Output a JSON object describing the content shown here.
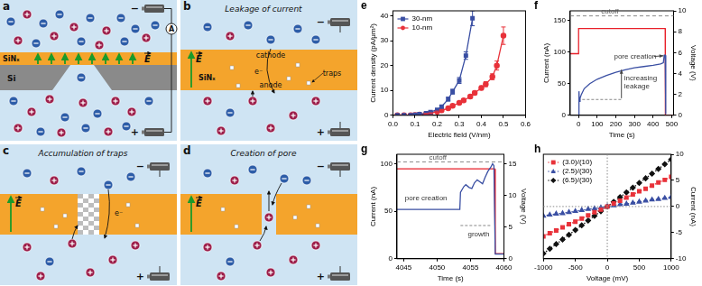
{
  "diagrams": [
    {
      "panel": "a",
      "electrodes": [
        "−",
        "+"
      ],
      "membrane": "SiNₓ",
      "substrate": "Si",
      "meter": "A",
      "field": "E"
    },
    {
      "panel": "b",
      "title": "Leakage of current",
      "electrodes": [
        "−",
        "+"
      ],
      "cathode": "cathode",
      "membrane": "SiNₓ",
      "anode": "anode",
      "traps": "traps",
      "electron": "e⁻",
      "field": "E"
    },
    {
      "panel": "c",
      "title": "Accumulation of traps",
      "electrodes": [
        "−",
        "+"
      ],
      "electron": "e⁻",
      "field": "E"
    },
    {
      "panel": "d",
      "title": "Creation of pore",
      "electrodes": [
        "−",
        "+"
      ],
      "field": "E"
    }
  ],
  "chart_data": [
    {
      "panel": "e",
      "type": "scatter",
      "x_label": "Electric field (V/nm)",
      "y_label": "Current density (pA/μm²)",
      "xlim": [
        0,
        0.6
      ],
      "xticks": [
        {
          "value": 0,
          "label": "0.0"
        },
        0.1,
        0.2,
        0.3,
        0.4,
        0.5,
        0.6
      ],
      "ylim": [
        0,
        42
      ],
      "yticks": [
        0,
        10,
        20,
        30,
        40
      ],
      "grid": false,
      "legend": "top-left",
      "series": [
        {
          "name": "30-nm",
          "color": "#3a4fa3",
          "marker": "square",
          "line_style": "solid",
          "x": [
            0.02,
            0.05,
            0.08,
            0.1,
            0.12,
            0.15,
            0.17,
            0.2,
            0.22,
            0.25,
            0.27,
            0.3,
            0.33,
            0.36
          ],
          "values": [
            0,
            0,
            0,
            0.2,
            0.5,
            0.8,
            1.3,
            2.2,
            3.5,
            6.5,
            9.5,
            14,
            24,
            39
          ],
          "errors": [
            0,
            0,
            0,
            0,
            0,
            0,
            0.2,
            0.3,
            0.5,
            0.8,
            1,
            1.2,
            1.5,
            3
          ]
        },
        {
          "name": "10-nm",
          "color": "#e8323a",
          "marker": "circle",
          "line_style": "solid",
          "x": [
            0.02,
            0.05,
            0.08,
            0.1,
            0.12,
            0.15,
            0.17,
            0.2,
            0.22,
            0.25,
            0.27,
            0.3,
            0.32,
            0.35,
            0.37,
            0.4,
            0.42,
            0.45,
            0.47,
            0.5
          ],
          "values": [
            0,
            0,
            0,
            0.1,
            0.3,
            0.6,
            0.9,
            1.5,
            2,
            2.8,
            3.8,
            5,
            6,
            7.5,
            9,
            11,
            12.5,
            15.5,
            20,
            32
          ],
          "errors": [
            0,
            0,
            0,
            0,
            0,
            0.1,
            0.1,
            0.2,
            0.2,
            0.3,
            0.4,
            0.5,
            0.5,
            0.6,
            0.7,
            0.8,
            1,
            1.2,
            1.8,
            3.5
          ]
        }
      ]
    },
    {
      "panel": "f",
      "type": "line",
      "x_label": "Time (s)",
      "y_label": "Current (nA)",
      "y2_label": "Voltage (V)",
      "xlim": [
        -45,
        510
      ],
      "xticks": [
        0,
        100,
        200,
        300,
        400,
        500
      ],
      "ylim": [
        0,
        165
      ],
      "yticks": [
        0,
        50,
        100,
        150
      ],
      "y2lim": [
        0,
        10
      ],
      "y2ticks": [
        0,
        2,
        4,
        6,
        8,
        10
      ],
      "grid": false,
      "series": [
        {
          "color": "#3a4fa3",
          "line_style": "solid",
          "x": [
            0,
            2,
            4,
            8,
            15,
            30,
            60,
            100,
            150,
            200,
            250,
            300,
            350,
            400,
            440,
            455,
            460,
            465,
            468
          ],
          "values": [
            0,
            38,
            22,
            27,
            33,
            42,
            50,
            57,
            63,
            68,
            72,
            75,
            77,
            79,
            81,
            83,
            95,
            95,
            2
          ]
        },
        {
          "color": "#e8202a",
          "line_style": "solid",
          "axis": "y2",
          "x": [
            -45,
            0,
            0,
            465,
            466,
            510
          ],
          "values": [
            5.9,
            5.9,
            8.3,
            8.3,
            0,
            0
          ]
        }
      ],
      "reference_lines": [
        {
          "y": 157,
          "label": "cutoff"
        }
      ],
      "annotations": [
        {
          "text": "pore creation",
          "x": 190,
          "y": 93
        },
        {
          "text": "increasing\nleakage",
          "x": 245,
          "y": 52
        }
      ],
      "arrows": [
        {
          "from": [
            405,
            93
          ],
          "to": [
            456,
            94
          ]
        },
        {
          "from": [
            230,
            27
          ],
          "to": [
            230,
            72
          ]
        }
      ],
      "guides": [
        {
          "x0": 20,
          "x1": 230,
          "y": 25
        }
      ]
    },
    {
      "panel": "g",
      "type": "line",
      "x_label": "Time (s)",
      "y_label": "Current (nA)",
      "y2_label": "Voltage (V)",
      "xlim": [
        4044,
        4060
      ],
      "xticks": [
        4045,
        4050,
        4055,
        4060
      ],
      "ylim": [
        0,
        110
      ],
      "yticks": [
        0,
        50,
        100
      ],
      "y2lim": [
        0,
        16.5
      ],
      "y2ticks": [
        0,
        5,
        10,
        15
      ],
      "grid": false,
      "series": [
        {
          "color": "#3a4fa3",
          "line_style": "solid",
          "x": [
            4044,
            4053.4,
            4053.5,
            4054,
            4054.3,
            4054.8,
            4055.2,
            4055.6,
            4056,
            4056.4,
            4056.8,
            4057.2,
            4057.6,
            4058,
            4058.3,
            4058.5,
            4058.7,
            4060
          ],
          "values": [
            52,
            52,
            70,
            76,
            78,
            75,
            74,
            80,
            83,
            81,
            79,
            86,
            92,
            96,
            100,
            98,
            5,
            5
          ]
        },
        {
          "color": "#e8202a",
          "line_style": "solid",
          "axis": "y2",
          "x": [
            4044,
            4058.6,
            4058.7,
            4060
          ],
          "values": [
            14.2,
            14.2,
            0.8,
            0.8
          ]
        }
      ],
      "reference_lines": [
        {
          "y": 102,
          "label": "cutoff"
        }
      ],
      "annotations": [
        {
          "text": "pore creation",
          "x": 4045.2,
          "y": 64
        },
        {
          "text": "growth",
          "x": 4054.6,
          "y": 26
        }
      ],
      "guides": [
        {
          "x0": 4053.5,
          "x1": 4058,
          "y": 35
        }
      ]
    },
    {
      "panel": "h",
      "type": "line",
      "x_label": "Voltage (mV)",
      "y2_label": "Current (nA)",
      "xlim": [
        -1000,
        1000
      ],
      "xticks": [
        -1000,
        -500,
        0,
        500,
        1000
      ],
      "y2lim": [
        -10,
        10
      ],
      "y2ticks": [
        -10,
        -5,
        0,
        5,
        10
      ],
      "grid": false,
      "legend": "top-left",
      "x": [
        -1000,
        -900,
        -800,
        -700,
        -600,
        -500,
        -400,
        -300,
        -200,
        -100,
        0,
        100,
        200,
        300,
        400,
        500,
        600,
        700,
        800,
        900,
        1000
      ],
      "series": [
        {
          "name": "(3.0)/(10)",
          "color": "#e8323a",
          "marker": "square",
          "line_style": "dotted",
          "axis": "y2",
          "values": [
            -5.7,
            -5.1,
            -4.6,
            -4.0,
            -3.4,
            -2.9,
            -2.3,
            -1.7,
            -1.1,
            -0.6,
            0,
            0.6,
            1.1,
            1.7,
            2.3,
            2.9,
            3.4,
            4.0,
            4.6,
            5.1,
            5.7
          ]
        },
        {
          "name": "(2.5)/(30)",
          "color": "#3a4fa3",
          "marker": "triangle",
          "line_style": "dotted",
          "axis": "y2",
          "values": [
            -1.8,
            -1.6,
            -1.4,
            -1.3,
            -1.1,
            -0.9,
            -0.7,
            -0.5,
            -0.4,
            -0.2,
            0,
            0.2,
            0.4,
            0.5,
            0.7,
            0.9,
            1.1,
            1.3,
            1.4,
            1.6,
            1.8
          ]
        },
        {
          "name": "(6.5)/(30)",
          "color": "#111111",
          "marker": "diamond",
          "line_style": "dotted",
          "axis": "y2",
          "values": [
            -9.0,
            -8.1,
            -7.2,
            -6.3,
            -5.4,
            -4.5,
            -3.6,
            -2.7,
            -1.8,
            -0.9,
            0,
            0.9,
            1.8,
            2.7,
            3.6,
            4.5,
            5.4,
            6.3,
            7.2,
            8.1,
            9.0
          ]
        }
      ],
      "reference_lines": [
        {
          "x": 0
        },
        {
          "y": 0
        }
      ]
    }
  ]
}
